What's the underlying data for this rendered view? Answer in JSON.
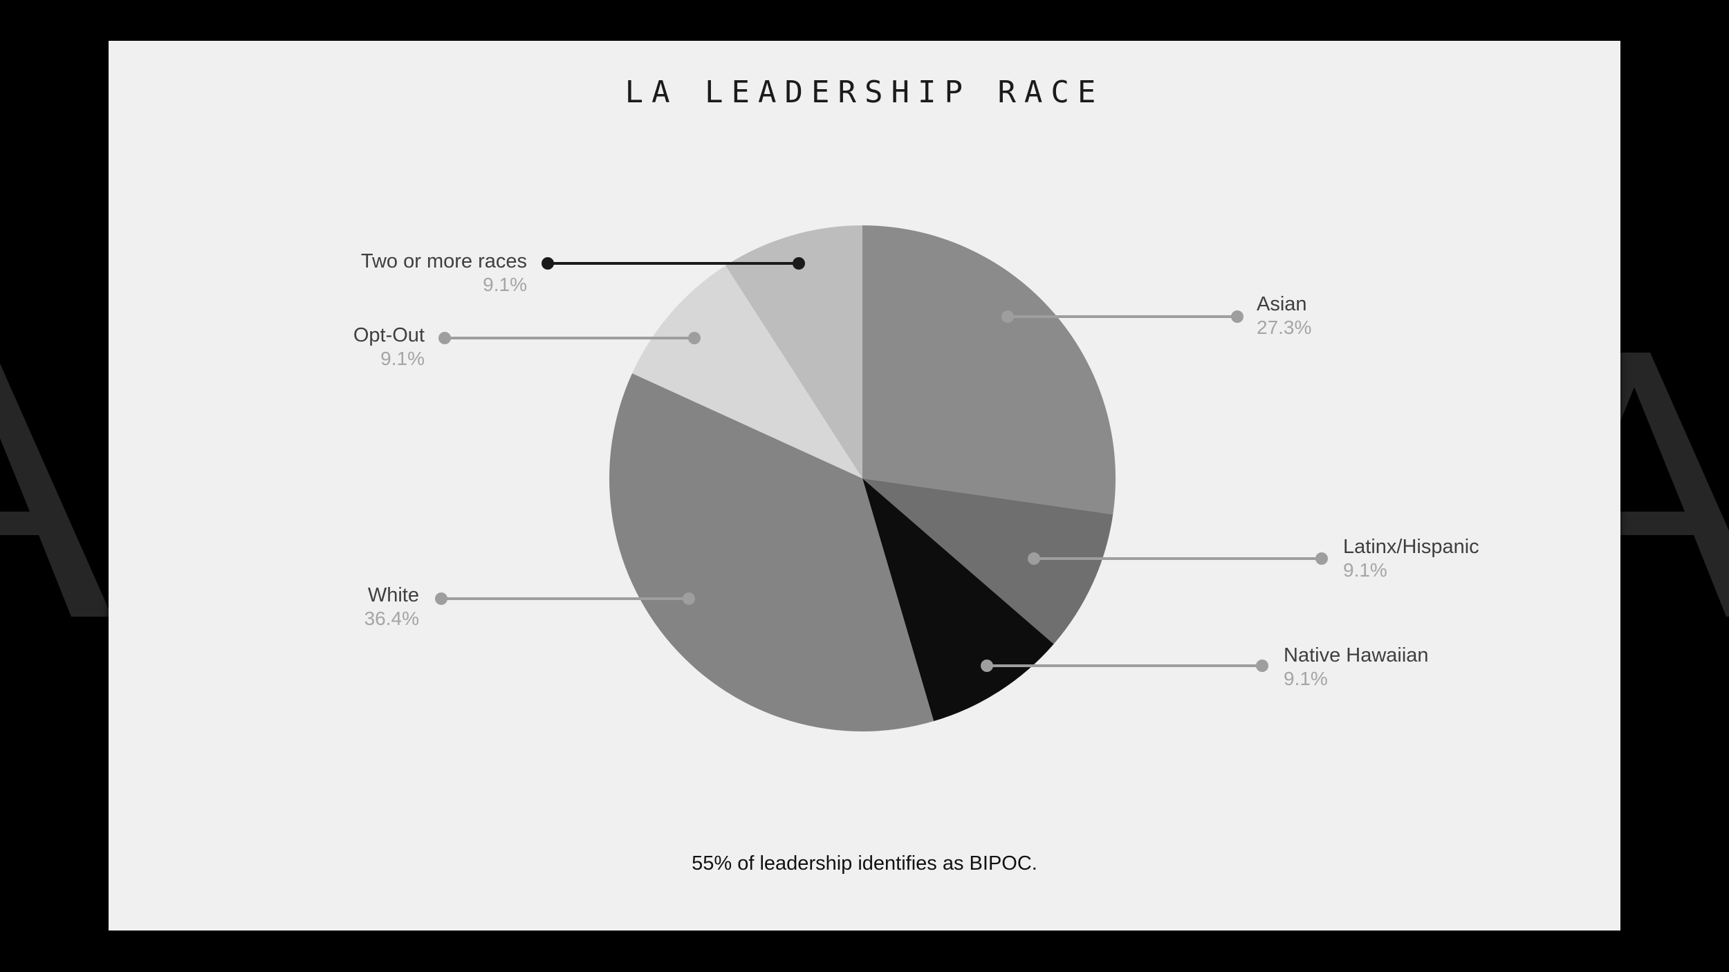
{
  "page": {
    "background_color": "#000000",
    "watermark_letter": "A",
    "watermark_color": "#262626"
  },
  "slide": {
    "background_color": "#f0f0f0",
    "title": "LA LEADERSHIP RACE",
    "caption": "55% of leadership identifies as BIPOC."
  },
  "chart_data": {
    "type": "pie",
    "title": "LA LEADERSHIP RACE",
    "start_angle_deg": 0,
    "direction": "clockwise",
    "legend_position": "callout-labels",
    "slices": [
      {
        "label": "Asian",
        "value_pct": 27.3,
        "display": "27.3%",
        "color": "#8b8b8b"
      },
      {
        "label": "Latinx/Hispanic",
        "value_pct": 9.1,
        "display": "9.1%",
        "color": "#6f6f6f"
      },
      {
        "label": "Native Hawaiian",
        "value_pct": 9.1,
        "display": "9.1%",
        "color": "#0d0d0d"
      },
      {
        "label": "White",
        "value_pct": 36.4,
        "display": "36.4%",
        "color": "#848484"
      },
      {
        "label": "Opt-Out",
        "value_pct": 9.1,
        "display": "9.1%",
        "color": "#d7d7d7"
      },
      {
        "label": "Two or more races",
        "value_pct": 9.1,
        "display": "9.1%",
        "color": "#bdbdbd"
      }
    ],
    "annotation": "55% of leadership identifies as BIPOC."
  },
  "callouts": [
    {
      "id": "two-or-more-races",
      "label": "Two or more races",
      "value": "9.1%",
      "side": "left",
      "line_color": "#1a1a1a"
    },
    {
      "id": "opt-out",
      "label": "Opt-Out",
      "value": "9.1%",
      "side": "left",
      "line_color": "#9e9e9e"
    },
    {
      "id": "white",
      "label": "White",
      "value": "36.4%",
      "side": "left",
      "line_color": "#9e9e9e"
    },
    {
      "id": "asian",
      "label": "Asian",
      "value": "27.3%",
      "side": "right",
      "line_color": "#9e9e9e"
    },
    {
      "id": "latinx-hispanic",
      "label": "Latinx/Hispanic",
      "value": "9.1%",
      "side": "right",
      "line_color": "#9e9e9e"
    },
    {
      "id": "native-hawaiian",
      "label": "Native Hawaiian",
      "value": "9.1%",
      "side": "right",
      "line_color": "#9e9e9e"
    }
  ]
}
